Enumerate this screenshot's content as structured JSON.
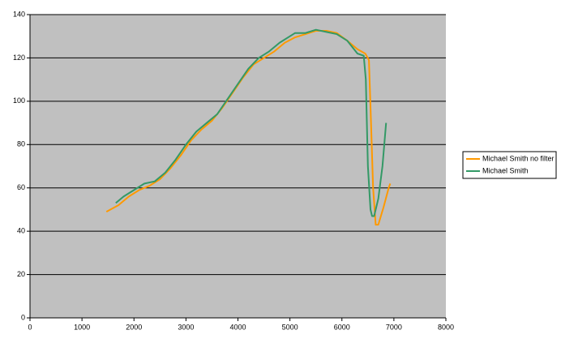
{
  "chart_data": {
    "type": "line",
    "xlim": [
      0,
      8000
    ],
    "xticks": [
      0,
      1000,
      2000,
      3000,
      4000,
      5000,
      6000,
      7000,
      8000
    ],
    "ylim": [
      0,
      140
    ],
    "yticks": [
      0,
      20,
      40,
      60,
      80,
      100,
      120,
      140
    ],
    "grid": true,
    "legend": "right",
    "series": [
      {
        "name": "Michael Smith no filter",
        "color": "#ff9900",
        "x": [
          1470,
          1700,
          1900,
          2100,
          2300,
          2500,
          2700,
          2900,
          3100,
          3300,
          3500,
          3700,
          3900,
          4100,
          4300,
          4500,
          4700,
          4900,
          5100,
          5300,
          5500,
          5700,
          5900,
          6100,
          6300,
          6450,
          6520,
          6560,
          6600,
          6650,
          6700,
          6800,
          6900,
          6930
        ],
        "values": [
          49,
          52,
          56,
          59,
          61,
          64,
          69,
          75,
          82,
          87,
          91,
          97,
          104,
          111,
          117,
          120,
          123,
          127,
          129.5,
          131,
          132.5,
          132.5,
          131.5,
          128,
          124,
          122,
          119,
          90,
          60,
          43,
          43,
          51,
          60,
          62
        ]
      },
      {
        "name": "Michael Smith",
        "color": "#339966",
        "x": [
          1650,
          1800,
          2000,
          2200,
          2400,
          2600,
          2800,
          3000,
          3200,
          3400,
          3600,
          3800,
          4000,
          4200,
          4400,
          4600,
          4800,
          5000,
          5100,
          5300,
          5500,
          5700,
          5900,
          6100,
          6300,
          6420,
          6460,
          6500,
          6550,
          6580,
          6620,
          6700,
          6780,
          6850
        ],
        "values": [
          53,
          56,
          59,
          62,
          63,
          67,
          73,
          80,
          86,
          90,
          94,
          101,
          108,
          115,
          120,
          123,
          127,
          130,
          131.5,
          131.5,
          133,
          132,
          131,
          128,
          122,
          121,
          110,
          70,
          50,
          47,
          47,
          55,
          70,
          90
        ]
      }
    ]
  }
}
